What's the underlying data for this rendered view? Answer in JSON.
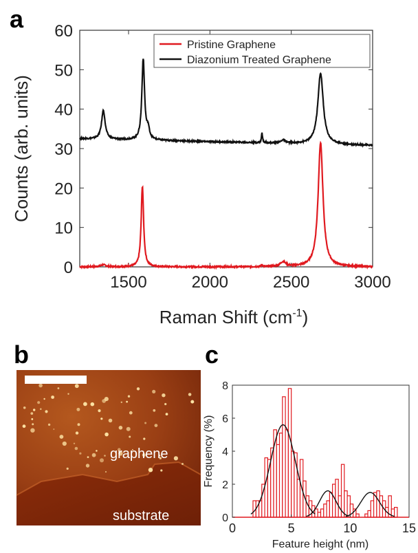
{
  "panels": {
    "a": "a",
    "b": "b",
    "c": "c"
  },
  "chart_data": [
    {
      "panel": "a",
      "type": "line",
      "xlabel": "Raman Shift (cm",
      "xlabel_sup": "-1",
      "xlabel_close": ")",
      "ylabel": "Counts (arb. units)",
      "xlim": [
        1200,
        3000
      ],
      "ylim": [
        0,
        60
      ],
      "xticks": [
        1500,
        2000,
        2500,
        3000
      ],
      "yticks": [
        0,
        10,
        20,
        30,
        40,
        50,
        60
      ],
      "legend_position": "top-right",
      "series": [
        {
          "name": "Pristine Graphene",
          "color": "#e0191f",
          "baseline": 0,
          "peaks": [
            {
              "x": 1345,
              "h": 0.5,
              "w": 20
            },
            {
              "x": 1585,
              "h": 20.5,
              "w": 9
            },
            {
              "x": 2320,
              "h": 0.5,
              "w": 5
            },
            {
              "x": 2450,
              "h": 1.2,
              "w": 20
            },
            {
              "x": 2680,
              "h": 31.5,
              "w": 18
            }
          ]
        },
        {
          "name": "Diazonium Treated Graphene",
          "color": "#111111",
          "baseline": 32.5,
          "baseline_end": 30.8,
          "peaks": [
            {
              "x": 1345,
              "h": 7.3,
              "w": 13
            },
            {
              "x": 1590,
              "h": 20.5,
              "w": 10
            },
            {
              "x": 1620,
              "h": 2.5,
              "w": 10
            },
            {
              "x": 2320,
              "h": 2.5,
              "w": 4
            },
            {
              "x": 2450,
              "h": 0.8,
              "w": 15
            },
            {
              "x": 2680,
              "h": 18,
              "w": 20
            }
          ]
        }
      ]
    },
    {
      "panel": "c",
      "type": "bar",
      "xlabel": "Feature height (nm)",
      "ylabel": "Frequency (%)",
      "xlim": [
        0,
        15
      ],
      "ylim": [
        0,
        8
      ],
      "xticks": [
        0,
        5,
        10,
        15
      ],
      "yticks": [
        0,
        2,
        4,
        6,
        8
      ],
      "bin_width": 0.25,
      "bin_start": 1.75,
      "values": [
        1,
        1,
        1,
        2,
        3.6,
        3.5,
        4.2,
        5.3,
        4.4,
        5.1,
        7.3,
        5.3,
        7.8,
        4,
        3.9,
        2.3,
        3.5,
        2.2,
        1.3,
        1,
        0.7,
        0.5,
        0.3,
        0.5,
        0.8,
        1,
        1.5,
        2,
        2.3,
        1.3,
        3.2,
        1.6,
        1.3,
        0.8,
        0.5,
        0.2,
        0,
        0,
        0.2,
        0.4,
        1,
        1.5,
        1.6,
        1.3,
        1,
        0.6,
        1.3,
        0.5,
        0.6
      ],
      "fit": [
        {
          "mu": 4.3,
          "sigma": 1.05,
          "amp": 5.6
        },
        {
          "mu": 8.1,
          "sigma": 0.7,
          "amp": 1.6
        },
        {
          "mu": 11.7,
          "sigma": 0.8,
          "amp": 1.5
        }
      ],
      "bar_color": "#e0191f",
      "fit_color": "#111111"
    }
  ],
  "afm": {
    "label_top": "graphene",
    "label_bottom": "substrate"
  }
}
